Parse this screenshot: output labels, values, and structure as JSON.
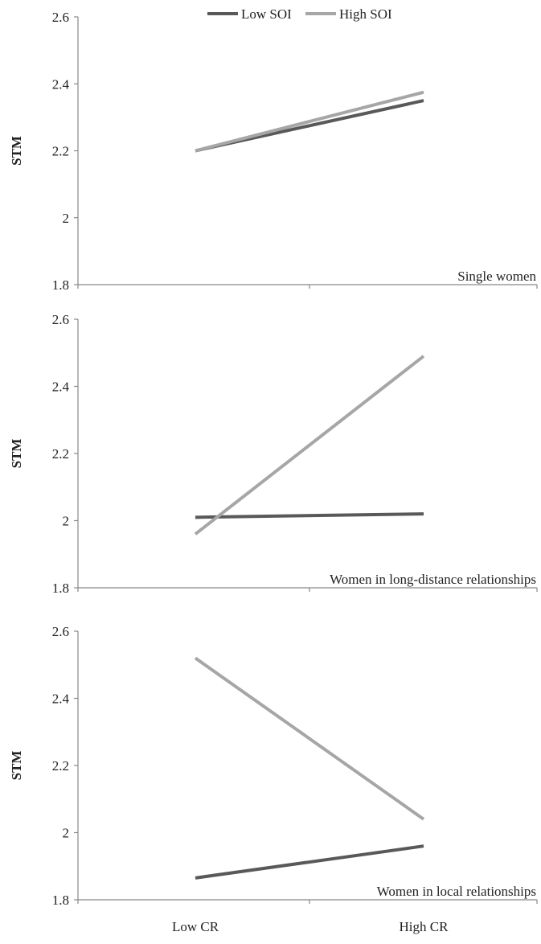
{
  "legend": {
    "items": [
      {
        "label": "Low SOI",
        "color": "#595959"
      },
      {
        "label": "High SOI",
        "color": "#a6a6a6"
      }
    ]
  },
  "x_axis": {
    "tick_labels": [
      "Low CR",
      "High CR"
    ]
  },
  "chart_data": [
    {
      "type": "line",
      "panel_label": "Single women",
      "ylabel": "STM",
      "ylim": [
        1.8,
        2.6
      ],
      "yticks": [
        "1.8",
        "2",
        "2.2",
        "2.4",
        "2.6"
      ],
      "categories": [
        "Low CR",
        "High CR"
      ],
      "series": [
        {
          "name": "Low SOI",
          "values": [
            2.2,
            2.35
          ]
        },
        {
          "name": "High SOI",
          "values": [
            2.2,
            2.375
          ]
        }
      ],
      "grid": false
    },
    {
      "type": "line",
      "panel_label": "Women in long-distance relationships",
      "ylabel": "STM",
      "ylim": [
        1.8,
        2.6
      ],
      "yticks": [
        "1.8",
        "2",
        "2.2",
        "2.4",
        "2.6"
      ],
      "categories": [
        "Low CR",
        "High CR"
      ],
      "series": [
        {
          "name": "Low SOI",
          "values": [
            2.01,
            2.02
          ]
        },
        {
          "name": "High SOI",
          "values": [
            1.96,
            2.49
          ]
        }
      ],
      "grid": false
    },
    {
      "type": "line",
      "panel_label": "Women in local relationships",
      "ylabel": "STM",
      "ylim": [
        1.8,
        2.6
      ],
      "yticks": [
        "1.8",
        "2",
        "2.2",
        "2.4",
        "2.6"
      ],
      "categories": [
        "Low CR",
        "High CR"
      ],
      "series": [
        {
          "name": "Low SOI",
          "values": [
            1.865,
            1.96
          ]
        },
        {
          "name": "High SOI",
          "values": [
            2.52,
            2.04
          ]
        }
      ],
      "grid": false
    }
  ],
  "colors": {
    "Low SOI": "#595959",
    "High SOI": "#a6a6a6",
    "axis": "#888888"
  }
}
